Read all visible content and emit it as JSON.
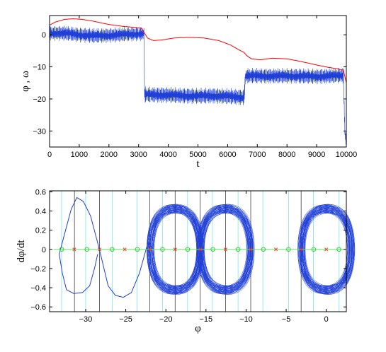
{
  "chart_data": [
    {
      "type": "line",
      "xlabel": "t",
      "ylabel": "φ , ω",
      "xlim": [
        0,
        10000
      ],
      "ylim": [
        -35,
        6
      ],
      "xticks": [
        0,
        1000,
        2000,
        3000,
        4000,
        5000,
        6000,
        7000,
        8000,
        9000,
        10000
      ],
      "yticks": [
        0,
        -10,
        -20,
        -30
      ],
      "grid": false,
      "series": [
        {
          "color": "#ff0000",
          "style": "line",
          "x": [
            0,
            200,
            500,
            800,
            1100,
            1500,
            2000,
            2500,
            2900,
            3100,
            3300,
            3500,
            3800,
            4200,
            4700,
            5200,
            5700,
            6100,
            6400,
            6550,
            6650,
            6800,
            7100,
            7500,
            8000,
            8400,
            8800,
            9300,
            9700,
            9900,
            10000
          ],
          "y": [
            3.0,
            4.0,
            4.8,
            5.0,
            4.8,
            4.2,
            3.2,
            2.6,
            2.3,
            2.0,
            -1.0,
            -1.8,
            -1.6,
            -1.0,
            -0.8,
            -1.0,
            -1.8,
            -3.2,
            -4.8,
            -5.5,
            -6.5,
            -7.5,
            -7.8,
            -7.3,
            -7.5,
            -8.2,
            -9.0,
            -10.0,
            -10.6,
            -11.0,
            -15.0
          ]
        },
        {
          "color": "#1f3fd6",
          "style": "band",
          "x": [
            0,
            500,
            1000,
            1500,
            2000,
            2500,
            3000,
            3180,
            3200,
            3400,
            4000,
            4500,
            5000,
            5500,
            6000,
            6560,
            6600,
            7000,
            7500,
            8000,
            8500,
            9000,
            9500,
            9900,
            9950,
            10000
          ],
          "center": [
            0.5,
            0.5,
            0.0,
            -0.3,
            -0.2,
            0.1,
            0.3,
            0.3,
            -18.7,
            -18.7,
            -18.8,
            -19.0,
            -19.1,
            -19.0,
            -19.2,
            -19.5,
            -12.8,
            -12.8,
            -12.9,
            -12.8,
            -12.9,
            -13.0,
            -12.8,
            -12.7,
            -30.0,
            -34.0
          ],
          "amplitude": [
            2.3,
            2.5,
            2.4,
            2.5,
            2.4,
            2.4,
            2.3,
            2.2,
            2.6,
            2.6,
            2.6,
            2.6,
            2.6,
            2.6,
            2.6,
            2.7,
            2.5,
            2.5,
            2.5,
            2.5,
            2.5,
            2.5,
            2.5,
            2.5,
            3.0,
            1.0
          ]
        }
      ]
    },
    {
      "type": "line",
      "xlabel": "φ",
      "ylabel": "dφ/dt",
      "xlim": [
        -34.5,
        2.5
      ],
      "ylim": [
        -0.65,
        0.61
      ],
      "xticks": [
        -30,
        -25,
        -20,
        -15,
        -10,
        -5,
        0
      ],
      "yticks": [
        0.6,
        0.4,
        0.2,
        0,
        -0.2,
        -0.4,
        -0.6
      ],
      "grid": false,
      "vertical_lines": {
        "black": [
          -31.4,
          -28.27,
          -21.99,
          -18.85,
          -15.71,
          -12.57,
          -9.42,
          -3.14
        ],
        "cyan": [
          -33.0,
          -30.0,
          -26.7,
          -23.6,
          -20.4,
          -17.3,
          -14.2,
          -11.0,
          -7.9,
          -4.7,
          -1.6,
          1.6
        ]
      },
      "markers": {
        "red_x": [
          -31.42,
          -28.27,
          -25.13,
          -21.99,
          -18.85,
          -15.71,
          -12.57,
          -9.42,
          -6.28,
          -3.14,
          0.0
        ],
        "green_circle": [
          -32.99,
          -29.85,
          -26.7,
          -23.56,
          -20.42,
          -17.28,
          -14.14,
          -10.99,
          -7.85,
          -4.71,
          -1.57,
          1.57
        ]
      },
      "series": [
        {
          "name": "path",
          "color": "#1f3fd6",
          "x": [
            -33.3,
            -32.5,
            -31.8,
            -31.1,
            -30.3,
            -29.4,
            -28.6,
            -28.3,
            -28.0,
            -27.2,
            -26.3,
            -25.3,
            -24.3,
            -23.3,
            -22.4,
            -22.0,
            -22.3,
            -22.1,
            -21.5
          ],
          "y": [
            -0.05,
            0.2,
            0.42,
            0.54,
            0.5,
            0.35,
            0.1,
            0.0,
            -0.1,
            -0.38,
            -0.48,
            -0.5,
            -0.45,
            -0.25,
            0.02,
            -0.05,
            0.1,
            0.05,
            0.0
          ]
        },
        {
          "name": "path2",
          "color": "#1f3fd6",
          "x": [
            -33.3,
            -32.9,
            -32.4,
            -31.5,
            -30.4,
            -29.5,
            -28.9,
            -28.5
          ],
          "y": [
            -0.05,
            -0.25,
            -0.42,
            -0.46,
            -0.45,
            -0.38,
            -0.2,
            -0.05
          ]
        },
        {
          "name": "loops",
          "color": "#1f3fd6",
          "style": "orbits",
          "centers": [
            -18.85,
            -12.57,
            0.0
          ],
          "halfwidth": [
            2.9,
            3.3
          ],
          "amplitude": [
            0.45,
            0.56
          ],
          "count": 40
        }
      ]
    }
  ]
}
